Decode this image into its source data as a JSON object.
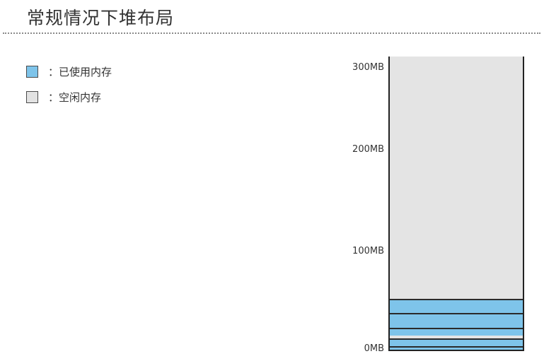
{
  "title": "常规情况下堆布局",
  "legend": [
    {
      "label": "：已使用内存",
      "color": "#7ec4ea"
    },
    {
      "label": "：空闲内存",
      "color": "#e2e2e2"
    }
  ],
  "chart_data": {
    "type": "bar",
    "title": "常规情况下堆布局",
    "y_ticks": [
      "300MB",
      "200MB",
      "100MB",
      "0MB"
    ],
    "y_tick_values": [
      300,
      200,
      100,
      0
    ],
    "ylim": [
      0,
      300
    ],
    "unit": "MB",
    "segments": [
      {
        "kind": "used",
        "from": 0,
        "to": 4
      },
      {
        "kind": "used",
        "from": 4,
        "to": 12
      },
      {
        "kind": "free",
        "from": 12,
        "to": 15
      },
      {
        "kind": "used",
        "from": 15,
        "to": 23
      },
      {
        "kind": "used",
        "from": 23,
        "to": 38
      },
      {
        "kind": "used",
        "from": 38,
        "to": 53
      },
      {
        "kind": "free",
        "from": 53,
        "to": 307
      }
    ],
    "colors": {
      "used": "#7ec4ea",
      "free": "#e4e4e4"
    }
  }
}
